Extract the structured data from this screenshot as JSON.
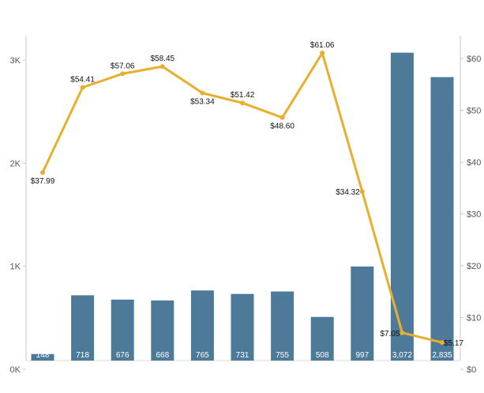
{
  "chart_data": {
    "type": "bar",
    "categories": [
      "",
      "",
      "",
      "",
      "",
      "",
      "",
      "",
      "",
      "",
      ""
    ],
    "series": [
      {
        "type": "bar",
        "axis": "left",
        "values": [
          148,
          718,
          676,
          668,
          765,
          731,
          755,
          508,
          997,
          3072,
          2835
        ],
        "labels": [
          "148",
          "718",
          "676",
          "668",
          "765",
          "731",
          "755",
          "508",
          "997",
          "3,072",
          "2,835"
        ],
        "color": "#4e7a99"
      },
      {
        "type": "line",
        "axis": "right",
        "values": [
          37.99,
          54.41,
          57.06,
          58.45,
          53.34,
          51.42,
          48.6,
          61.06,
          34.32,
          7.05,
          5.17
        ],
        "labels": [
          "$37.99",
          "$54.41",
          "$57.06",
          "$58.45",
          "$53.34",
          "$51.42",
          "$48.60",
          "$61.06",
          "$34.32",
          "$7.05",
          "$5.17"
        ],
        "color": "#e6b02e"
      }
    ],
    "left_axis": {
      "ylim": [
        0,
        3000
      ],
      "ticks": [
        "0K",
        "1K",
        "2K",
        "3K"
      ]
    },
    "right_axis": {
      "ylim": [
        0,
        60
      ],
      "ticks": [
        "$0",
        "$10",
        "$20",
        "$30",
        "$40",
        "$50",
        "$60"
      ]
    },
    "title": "",
    "xlabel": "",
    "ylabel": "",
    "grid": false,
    "legend": "none"
  }
}
